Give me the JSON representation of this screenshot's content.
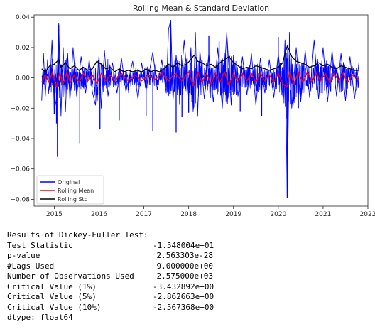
{
  "chart_data": {
    "type": "line",
    "title": "Rolling Mean & Standard Deviation",
    "xlabel": "",
    "ylabel": "",
    "xlim": [
      2014.55,
      2022.0
    ],
    "ylim": [
      -0.0845,
      0.0415
    ],
    "x_ticks": [
      {
        "value": 2015,
        "label": "2015"
      },
      {
        "value": 2016,
        "label": "2016"
      },
      {
        "value": 2017,
        "label": "2017"
      },
      {
        "value": 2018,
        "label": "2018"
      },
      {
        "value": 2019,
        "label": "2019"
      },
      {
        "value": 2020,
        "label": "2020"
      },
      {
        "value": 2021,
        "label": "2021"
      },
      {
        "value": 2022,
        "label": "2022"
      }
    ],
    "y_ticks": [
      {
        "value": 0.04,
        "label": "0.04"
      },
      {
        "value": 0.02,
        "label": "0.02"
      },
      {
        "value": 0.0,
        "label": "0.00"
      },
      {
        "value": -0.02,
        "label": "−0.02"
      },
      {
        "value": -0.04,
        "label": "−0.04"
      },
      {
        "value": -0.06,
        "label": "−0.06"
      },
      {
        "value": -0.08,
        "label": "−0.08"
      }
    ],
    "grid": false,
    "legend_position": "lower-left",
    "x_range": [
      2014.72,
      2021.8
    ],
    "series": [
      {
        "name": "Original",
        "color": "#0000ff",
        "points": [
          [
            2014.72,
            -0.015
          ],
          [
            2014.76,
            0.016
          ],
          [
            2014.8,
            -0.012
          ],
          [
            2014.85,
            0.012
          ],
          [
            2014.9,
            -0.008
          ],
          [
            2014.95,
            0.025
          ],
          [
            2015.0,
            -0.021
          ],
          [
            2015.05,
            -0.014
          ],
          [
            2015.1,
            0.036
          ],
          [
            2015.15,
            -0.025
          ],
          [
            2015.2,
            0.02
          ],
          [
            2015.25,
            -0.022
          ],
          [
            2015.3,
            0.016
          ],
          [
            2015.35,
            -0.015
          ],
          [
            2015.42,
            0.02
          ],
          [
            2015.5,
            -0.012
          ],
          [
            2015.6,
            0.014
          ],
          [
            2015.7,
            -0.01
          ],
          [
            2015.78,
            0.012
          ],
          [
            2015.85,
            -0.009
          ],
          [
            2015.92,
            -0.018
          ],
          [
            2016.0,
            0.015
          ],
          [
            2016.05,
            -0.02
          ],
          [
            2016.12,
            0.018
          ],
          [
            2016.2,
            -0.012
          ],
          [
            2016.3,
            0.01
          ],
          [
            2016.4,
            -0.01
          ],
          [
            2016.5,
            0.013
          ],
          [
            2016.6,
            -0.009
          ],
          [
            2016.75,
            0.011
          ],
          [
            2016.87,
            -0.014
          ],
          [
            2016.95,
            0.01
          ],
          [
            2017.05,
            -0.008
          ],
          [
            2017.2,
            0.017
          ],
          [
            2017.3,
            -0.008
          ],
          [
            2017.4,
            0.012
          ],
          [
            2017.5,
            -0.01
          ],
          [
            2017.55,
            0.032
          ],
          [
            2017.6,
            0.038
          ],
          [
            2017.65,
            -0.015
          ],
          [
            2017.72,
            0.015
          ],
          [
            2017.8,
            -0.012
          ],
          [
            2017.9,
            0.025
          ],
          [
            2018.0,
            -0.013
          ],
          [
            2018.05,
            0.02
          ],
          [
            2018.1,
            -0.022
          ],
          [
            2018.15,
            0.03
          ],
          [
            2018.2,
            -0.025
          ],
          [
            2018.25,
            0.018
          ],
          [
            2018.35,
            -0.014
          ],
          [
            2018.45,
            0.016
          ],
          [
            2018.55,
            -0.016
          ],
          [
            2018.65,
            0.02
          ],
          [
            2018.75,
            -0.02
          ],
          [
            2018.85,
            0.03
          ],
          [
            2018.95,
            -0.018
          ],
          [
            2019.0,
            0.015
          ],
          [
            2019.1,
            -0.012
          ],
          [
            2019.2,
            0.014
          ],
          [
            2019.3,
            -0.011
          ],
          [
            2019.4,
            0.016
          ],
          [
            2019.5,
            -0.018
          ],
          [
            2019.6,
            0.013
          ],
          [
            2019.7,
            -0.01
          ],
          [
            2019.8,
            0.012
          ],
          [
            2019.9,
            -0.013
          ],
          [
            2020.0,
            0.016
          ],
          [
            2020.1,
            -0.012
          ],
          [
            2020.15,
            0.025
          ],
          [
            2020.2,
            -0.079
          ],
          [
            2020.25,
            0.03
          ],
          [
            2020.3,
            -0.02
          ],
          [
            2020.4,
            0.02
          ],
          [
            2020.5,
            -0.016
          ],
          [
            2020.6,
            0.018
          ],
          [
            2020.7,
            -0.013
          ],
          [
            2020.8,
            0.025
          ],
          [
            2020.9,
            -0.014
          ],
          [
            2021.0,
            0.02
          ],
          [
            2021.1,
            -0.016
          ],
          [
            2021.2,
            0.018
          ],
          [
            2021.3,
            -0.012
          ],
          [
            2021.4,
            0.016
          ],
          [
            2021.5,
            -0.015
          ],
          [
            2021.6,
            0.014
          ],
          [
            2021.7,
            -0.014
          ],
          [
            2021.8,
            0.01
          ]
        ],
        "spikes": [
          [
            2015.0,
            -0.024
          ],
          [
            2015.05,
            -0.03
          ],
          [
            2015.07,
            -0.052
          ],
          [
            2015.1,
            0.035
          ],
          [
            2015.57,
            -0.043
          ],
          [
            2016.02,
            -0.034
          ],
          [
            2016.45,
            -0.028
          ],
          [
            2017.05,
            -0.025
          ],
          [
            2017.2,
            -0.035
          ],
          [
            2017.6,
            0.038
          ],
          [
            2017.72,
            -0.036
          ],
          [
            2017.85,
            -0.026
          ],
          [
            2018.0,
            -0.023
          ],
          [
            2018.45,
            0.028
          ],
          [
            2018.68,
            0.024
          ],
          [
            2019.15,
            -0.022
          ],
          [
            2019.63,
            -0.025
          ],
          [
            2020.0,
            0.027
          ],
          [
            2020.2,
            -0.079
          ],
          [
            2020.45,
            -0.02
          ]
        ]
      },
      {
        "name": "Rolling Mean",
        "color": "#ff0000",
        "points": [
          [
            2014.72,
            -0.003
          ],
          [
            2014.8,
            0.002
          ],
          [
            2014.88,
            -0.003
          ],
          [
            2014.96,
            0.004
          ],
          [
            2015.05,
            -0.006
          ],
          [
            2015.12,
            0.003
          ],
          [
            2015.2,
            -0.004
          ],
          [
            2015.28,
            0.004
          ],
          [
            2015.36,
            -0.003
          ],
          [
            2015.45,
            0.002
          ],
          [
            2015.55,
            -0.003
          ],
          [
            2015.65,
            0.003
          ],
          [
            2015.75,
            -0.002
          ],
          [
            2015.85,
            0.002
          ],
          [
            2015.95,
            -0.004
          ],
          [
            2016.05,
            0.003
          ],
          [
            2016.15,
            -0.002
          ],
          [
            2016.25,
            0.002
          ],
          [
            2016.35,
            -0.002
          ],
          [
            2016.5,
            0.003
          ],
          [
            2016.65,
            -0.002
          ],
          [
            2016.8,
            0.002
          ],
          [
            2016.95,
            -0.002
          ],
          [
            2017.1,
            0.002
          ],
          [
            2017.25,
            -0.001
          ],
          [
            2017.4,
            0.003
          ],
          [
            2017.55,
            -0.002
          ],
          [
            2017.7,
            0.003
          ],
          [
            2017.85,
            -0.002
          ],
          [
            2018.0,
            0.004
          ],
          [
            2018.1,
            -0.005
          ],
          [
            2018.2,
            0.004
          ],
          [
            2018.3,
            -0.003
          ],
          [
            2018.4,
            0.003
          ],
          [
            2018.5,
            -0.004
          ],
          [
            2018.6,
            0.003
          ],
          [
            2018.7,
            -0.003
          ],
          [
            2018.8,
            0.004
          ],
          [
            2018.9,
            -0.005
          ],
          [
            2019.0,
            0.003
          ],
          [
            2019.1,
            -0.003
          ],
          [
            2019.2,
            0.003
          ],
          [
            2019.3,
            -0.002
          ],
          [
            2019.4,
            0.003
          ],
          [
            2019.5,
            -0.003
          ],
          [
            2019.6,
            0.003
          ],
          [
            2019.7,
            -0.002
          ],
          [
            2019.8,
            0.002
          ],
          [
            2019.9,
            -0.003
          ],
          [
            2020.0,
            0.003
          ],
          [
            2020.1,
            -0.004
          ],
          [
            2020.2,
            -0.006
          ],
          [
            2020.25,
            0.004
          ],
          [
            2020.35,
            -0.004
          ],
          [
            2020.45,
            0.004
          ],
          [
            2020.55,
            -0.003
          ],
          [
            2020.65,
            0.004
          ],
          [
            2020.75,
            -0.003
          ],
          [
            2020.85,
            0.003
          ],
          [
            2020.95,
            -0.002
          ],
          [
            2021.05,
            0.003
          ],
          [
            2021.15,
            -0.003
          ],
          [
            2021.25,
            0.003
          ],
          [
            2021.35,
            -0.002
          ],
          [
            2021.45,
            0.003
          ],
          [
            2021.55,
            -0.003
          ],
          [
            2021.65,
            0.002
          ],
          [
            2021.8,
            -0.001
          ]
        ]
      },
      {
        "name": "Rolling Std",
        "color": "#000000",
        "points": [
          [
            2014.72,
            0.006
          ],
          [
            2014.8,
            0.004
          ],
          [
            2014.9,
            0.008
          ],
          [
            2015.0,
            0.009
          ],
          [
            2015.1,
            0.012
          ],
          [
            2015.15,
            0.007
          ],
          [
            2015.25,
            0.01
          ],
          [
            2015.35,
            0.006
          ],
          [
            2015.45,
            0.008
          ],
          [
            2015.55,
            0.005
          ],
          [
            2015.65,
            0.007
          ],
          [
            2015.75,
            0.005
          ],
          [
            2015.85,
            0.006
          ],
          [
            2015.95,
            0.011
          ],
          [
            2016.05,
            0.009
          ],
          [
            2016.15,
            0.006
          ],
          [
            2016.25,
            0.007
          ],
          [
            2016.35,
            0.004
          ],
          [
            2016.45,
            0.006
          ],
          [
            2016.55,
            0.004
          ],
          [
            2016.65,
            0.005
          ],
          [
            2016.75,
            0.004
          ],
          [
            2016.85,
            0.005
          ],
          [
            2016.95,
            0.004
          ],
          [
            2017.05,
            0.006
          ],
          [
            2017.15,
            0.004
          ],
          [
            2017.25,
            0.005
          ],
          [
            2017.35,
            0.004
          ],
          [
            2017.45,
            0.006
          ],
          [
            2017.55,
            0.009
          ],
          [
            2017.65,
            0.007
          ],
          [
            2017.75,
            0.01
          ],
          [
            2017.85,
            0.008
          ],
          [
            2017.95,
            0.009
          ],
          [
            2018.05,
            0.012
          ],
          [
            2018.12,
            0.015
          ],
          [
            2018.2,
            0.011
          ],
          [
            2018.3,
            0.01
          ],
          [
            2018.4,
            0.008
          ],
          [
            2018.5,
            0.009
          ],
          [
            2018.6,
            0.007
          ],
          [
            2018.7,
            0.01
          ],
          [
            2018.8,
            0.012
          ],
          [
            2018.9,
            0.014
          ],
          [
            2019.0,
            0.01
          ],
          [
            2019.1,
            0.008
          ],
          [
            2019.2,
            0.006
          ],
          [
            2019.3,
            0.007
          ],
          [
            2019.4,
            0.006
          ],
          [
            2019.5,
            0.008
          ],
          [
            2019.6,
            0.007
          ],
          [
            2019.7,
            0.006
          ],
          [
            2019.8,
            0.005
          ],
          [
            2019.9,
            0.006
          ],
          [
            2020.0,
            0.007
          ],
          [
            2020.1,
            0.01
          ],
          [
            2020.15,
            0.016
          ],
          [
            2020.2,
            0.021
          ],
          [
            2020.25,
            0.018
          ],
          [
            2020.3,
            0.014
          ],
          [
            2020.4,
            0.011
          ],
          [
            2020.5,
            0.01
          ],
          [
            2020.6,
            0.009
          ],
          [
            2020.7,
            0.007
          ],
          [
            2020.8,
            0.008
          ],
          [
            2020.9,
            0.01
          ],
          [
            2021.0,
            0.008
          ],
          [
            2021.1,
            0.009
          ],
          [
            2021.2,
            0.007
          ],
          [
            2021.3,
            0.006
          ],
          [
            2021.4,
            0.008
          ],
          [
            2021.5,
            0.007
          ],
          [
            2021.6,
            0.006
          ],
          [
            2021.7,
            0.005
          ],
          [
            2021.8,
            0.005
          ]
        ]
      }
    ]
  },
  "output": {
    "header": "Results of Dickey-Fuller Test:",
    "rows": [
      {
        "name": "Test Statistic",
        "value": "-1.548004e+01"
      },
      {
        "name": "p-value",
        "value": "2.563303e-28"
      },
      {
        "name": "#Lags Used",
        "value": "9.000000e+00"
      },
      {
        "name": "Number of Observations Used",
        "value": "2.575000e+03"
      },
      {
        "name": "Critical Value (1%)",
        "value": "-3.432892e+00"
      },
      {
        "name": "Critical Value (5%)",
        "value": "-2.862663e+00"
      },
      {
        "name": "Critical Value (10%)",
        "value": "-2.567368e+00"
      }
    ],
    "dtype": "dtype: float64"
  }
}
